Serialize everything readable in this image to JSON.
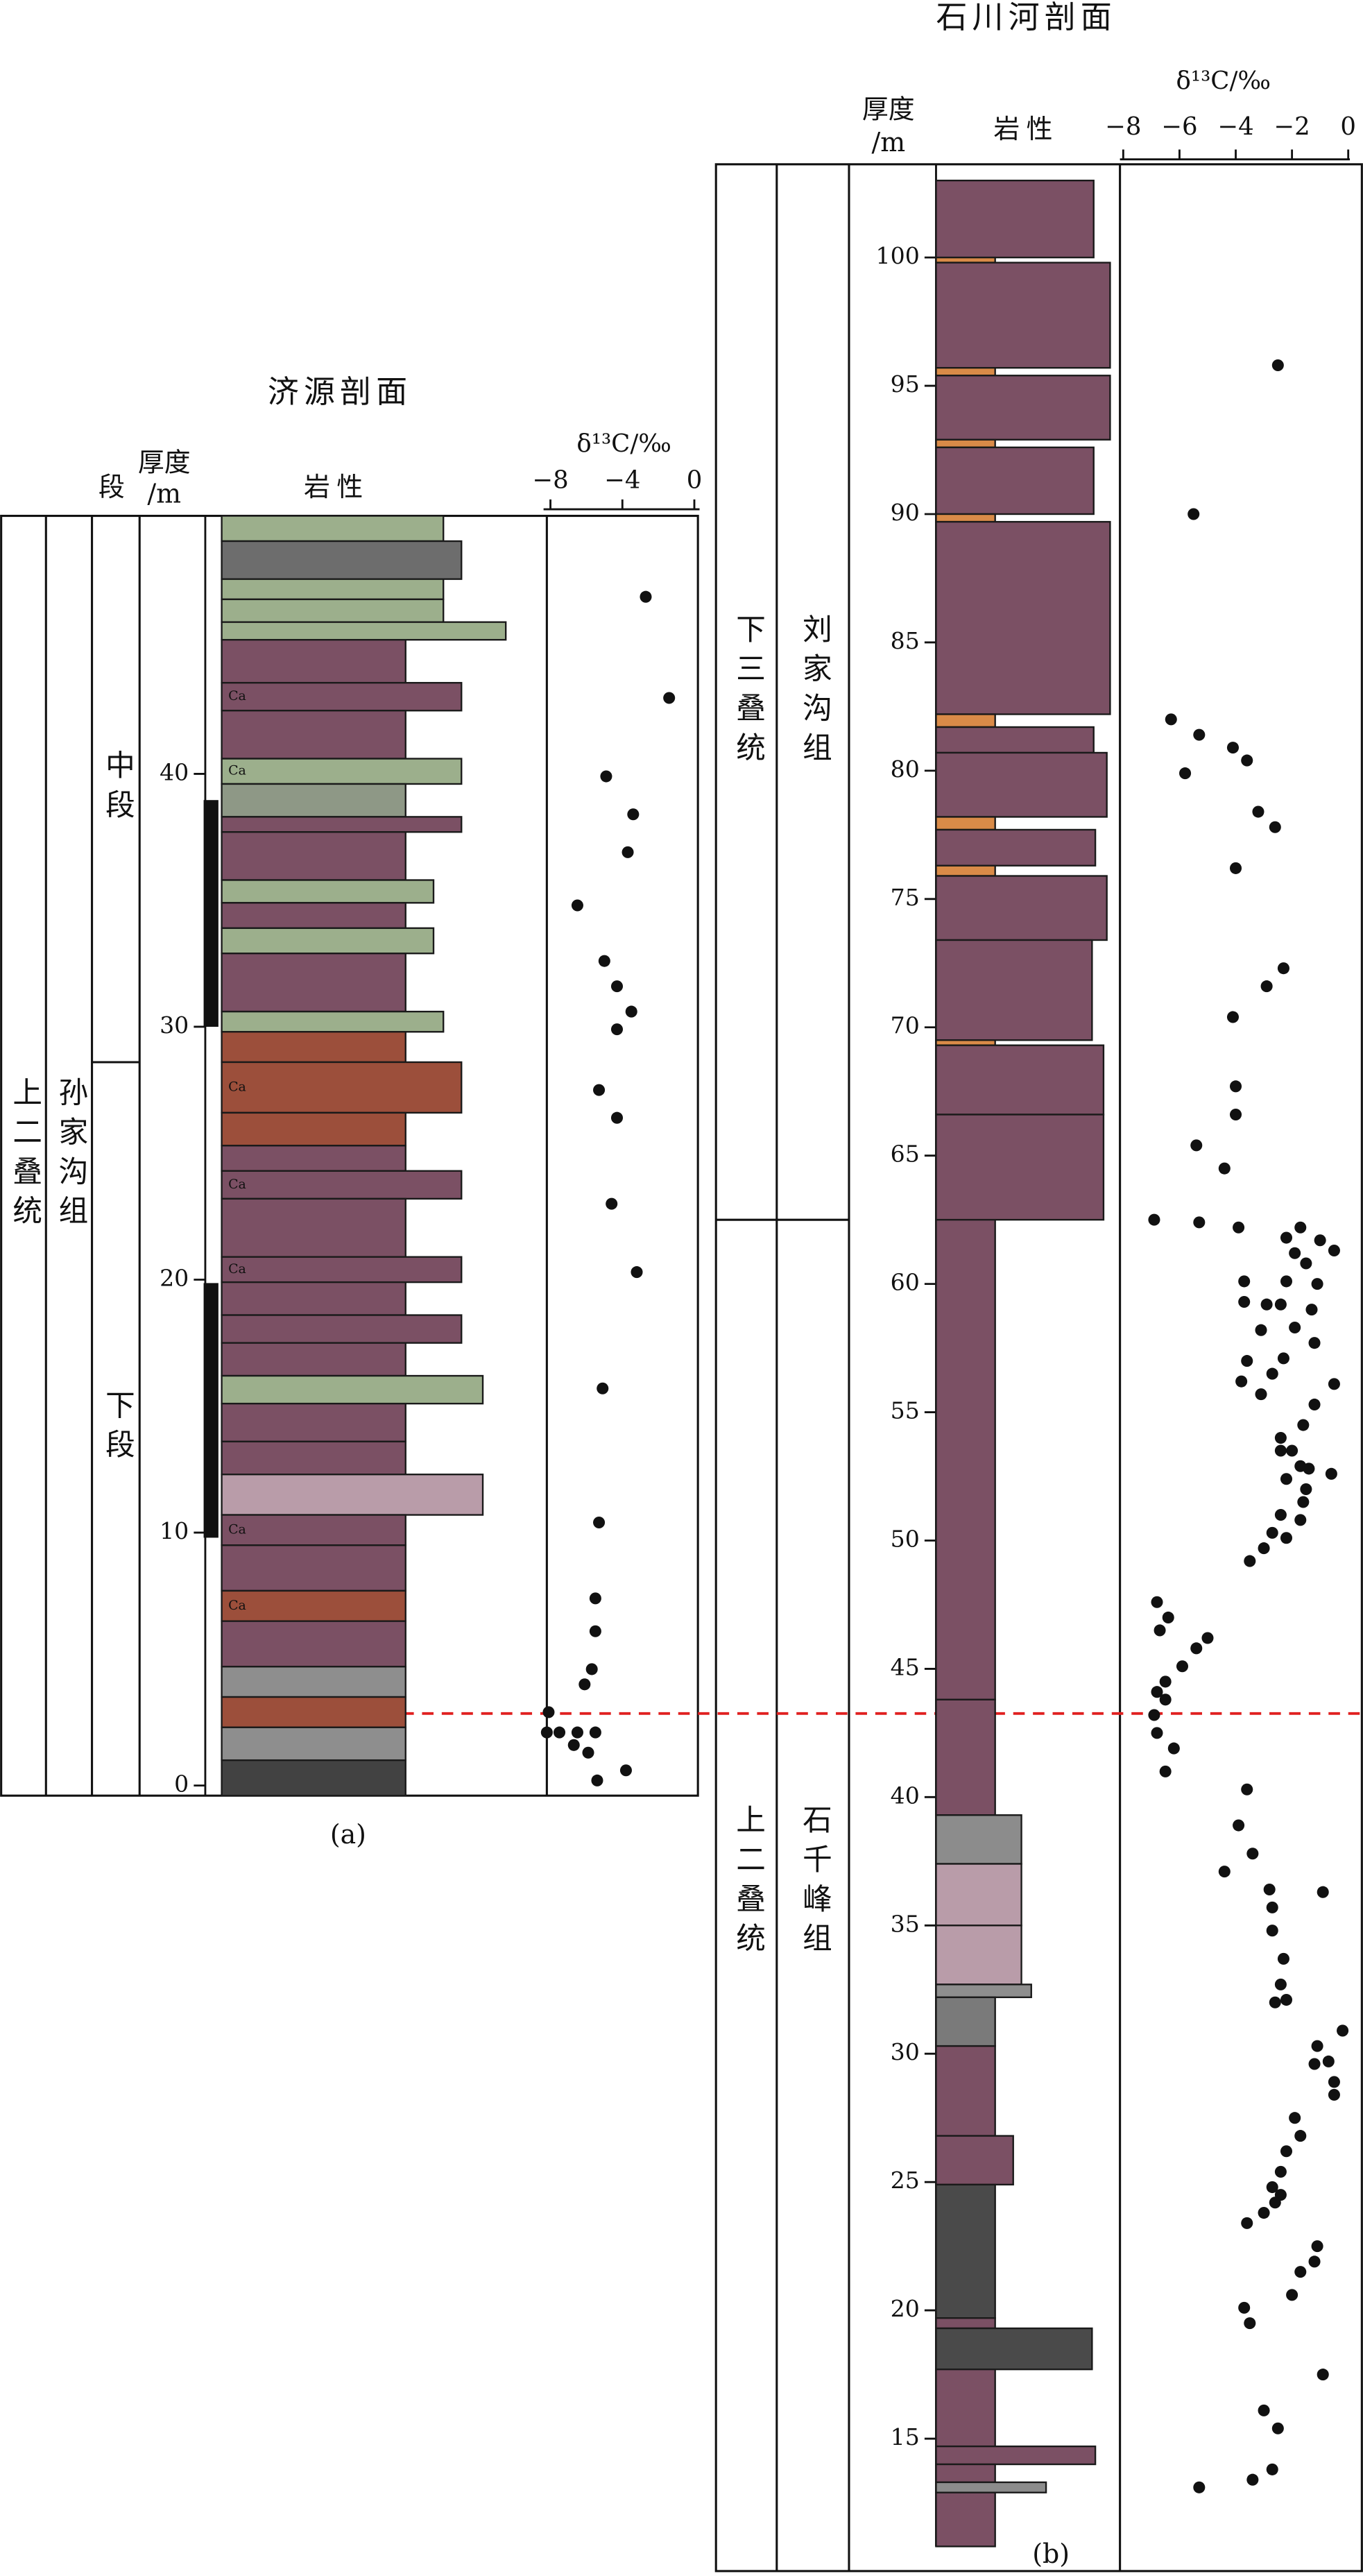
{
  "chart_data": [
    {
      "type": "scatter",
      "title": "济源剖面",
      "caption": "(a)",
      "xlabel": "δ¹³C/‰",
      "ylabel": [
        "厚度",
        "/m"
      ],
      "lithology_label": "岩性",
      "member_header": "段",
      "xlim": [
        -8.2,
        0.2
      ],
      "xticks": [
        {
          "value": -8,
          "label": "−8"
        },
        {
          "value": -4,
          "label": "−4"
        },
        0
      ],
      "ylim": [
        -0.4,
        50.2
      ],
      "yticks": [
        0,
        10,
        20,
        30,
        40
      ],
      "color": "#111111",
      "x": [
        -2.7,
        -1.4,
        -4.9,
        -3.4,
        -3.7,
        -6.5,
        -5.0,
        -4.3,
        -3.5,
        -4.3,
        -5.3,
        -4.3,
        -4.6,
        -3.2,
        -5.1,
        -5.3,
        -5.5,
        -5.5,
        -5.7,
        -6.1,
        -8.1,
        -8.2,
        -7.5,
        -6.5,
        -5.5,
        -6.7,
        -5.9,
        -3.8,
        -5.4
      ],
      "values": [
        47.0,
        43.0,
        39.9,
        38.4,
        36.9,
        34.8,
        32.6,
        31.6,
        30.6,
        29.9,
        27.5,
        26.4,
        23.0,
        20.3,
        15.7,
        10.4,
        7.4,
        6.1,
        4.6,
        4.0,
        2.9,
        2.1,
        2.1,
        2.1,
        2.1,
        1.6,
        1.3,
        0.6,
        0.2
      ],
      "systems": [
        {
          "label": "上二叠统",
          "top": 50.2,
          "bottom": -0.4
        }
      ],
      "formations": [
        {
          "label": "孙家沟组",
          "top": 50.2,
          "bottom": -0.4
        }
      ],
      "members": [
        {
          "label": "中段",
          "top": 50.2,
          "bottom": 28.6
        },
        {
          "label": "下段",
          "top": 28.6,
          "bottom": -0.4
        }
      ],
      "lithology": [
        {
          "top": 50.2,
          "bottom": 49.2,
          "color": "#9caf8c"
        },
        {
          "top": 49.2,
          "bottom": 47.7,
          "color": "#6d6d6d"
        },
        {
          "top": 47.7,
          "bottom": 46.9,
          "color": "#9caf8c"
        },
        {
          "top": 46.9,
          "bottom": 46.0,
          "color": "#9caf8c"
        },
        {
          "top": 46.0,
          "bottom": 45.3,
          "color": "#9caf8c"
        },
        {
          "top": 45.3,
          "bottom": 43.6,
          "color": "#7b5064"
        },
        {
          "top": 43.6,
          "bottom": 42.5,
          "color": "#7b5064",
          "label": "Ca"
        },
        {
          "top": 42.5,
          "bottom": 40.6,
          "color": "#7b5064"
        },
        {
          "top": 40.6,
          "bottom": 39.6,
          "color": "#9caf8c",
          "label": "Ca"
        },
        {
          "top": 39.6,
          "bottom": 38.3,
          "color": "#8e9886"
        },
        {
          "top": 38.3,
          "bottom": 37.7,
          "color": "#7b5064"
        },
        {
          "top": 37.7,
          "bottom": 35.8,
          "color": "#7b5064"
        },
        {
          "top": 35.8,
          "bottom": 34.9,
          "color": "#9caf8c"
        },
        {
          "top": 34.9,
          "bottom": 33.9,
          "color": "#7b5064"
        },
        {
          "top": 33.9,
          "bottom": 32.9,
          "color": "#9caf8c"
        },
        {
          "top": 32.9,
          "bottom": 30.6,
          "color": "#7b5064"
        },
        {
          "top": 30.6,
          "bottom": 29.8,
          "color": "#9caf8c"
        },
        {
          "top": 29.8,
          "bottom": 28.6,
          "color": "#9c4f3b"
        },
        {
          "top": 28.6,
          "bottom": 26.6,
          "color": "#9c4f3b",
          "label": "Ca"
        },
        {
          "top": 26.6,
          "bottom": 25.3,
          "color": "#9c4f3b"
        },
        {
          "top": 25.3,
          "bottom": 24.3,
          "color": "#7b5064"
        },
        {
          "top": 24.3,
          "bottom": 23.2,
          "color": "#7b5064",
          "label": "Ca"
        },
        {
          "top": 23.2,
          "bottom": 20.9,
          "color": "#7b5064"
        },
        {
          "top": 20.9,
          "bottom": 19.9,
          "color": "#7b5064",
          "label": "Ca"
        },
        {
          "top": 19.9,
          "bottom": 18.6,
          "color": "#7b5064"
        },
        {
          "top": 18.6,
          "bottom": 17.5,
          "color": "#7b5064"
        },
        {
          "top": 17.5,
          "bottom": 16.2,
          "color": "#7b5064"
        },
        {
          "top": 16.2,
          "bottom": 15.1,
          "color": "#9caf8c"
        },
        {
          "top": 15.1,
          "bottom": 13.6,
          "color": "#7b5064"
        },
        {
          "top": 13.6,
          "bottom": 12.3,
          "color": "#7b5064"
        },
        {
          "top": 12.3,
          "bottom": 10.7,
          "color": "#b99ca9"
        },
        {
          "top": 10.7,
          "bottom": 9.5,
          "color": "#7b5064",
          "label": "Ca"
        },
        {
          "top": 9.5,
          "bottom": 7.7,
          "color": "#7b5064"
        },
        {
          "top": 7.7,
          "bottom": 6.5,
          "color": "#9c4f3b",
          "label": "Ca"
        },
        {
          "top": 6.5,
          "bottom": 4.7,
          "color": "#7b5064"
        },
        {
          "top": 4.7,
          "bottom": 3.5,
          "color": "#8e8e8e"
        },
        {
          "top": 3.5,
          "bottom": 2.3,
          "color": "#9c4f3b"
        },
        {
          "top": 2.3,
          "bottom": 1.0,
          "color": "#8e8e8e"
        },
        {
          "top": 1.0,
          "bottom": -0.4,
          "color": "#424242"
        }
      ]
    },
    {
      "type": "scatter",
      "title": "石川河剖面",
      "caption": "(b)",
      "xlabel": "δ¹³C/‰",
      "ylabel": [
        "厚度",
        "/m"
      ],
      "lithology_label": "岩性",
      "xlim": [
        -8,
        0
      ],
      "xticks": [
        {
          "value": -8,
          "label": "−8"
        },
        {
          "value": -6,
          "label": "−6"
        },
        {
          "value": -4,
          "label": "−4"
        },
        {
          "value": -2,
          "label": "−2"
        },
        0
      ],
      "ylim": [
        10.8,
        103.6
      ],
      "yticks": [
        15,
        20,
        25,
        30,
        35,
        40,
        45,
        50,
        55,
        60,
        65,
        70,
        75,
        80,
        85,
        90,
        95,
        100
      ],
      "color": "#111111",
      "x": [
        -2.5,
        -5.5,
        -6.3,
        -5.3,
        -4.1,
        -5.8,
        -3.6,
        -3.2,
        -2.6,
        -4.0,
        -2.3,
        -2.9,
        -4.1,
        -4.0,
        -4.0,
        -5.4,
        -4.4,
        -6.9,
        -5.3,
        -3.9,
        -1.7,
        -2.2,
        -1.0,
        -0.5,
        -1.9,
        -1.5,
        -2.2,
        -3.7,
        -1.1,
        -3.7,
        -2.9,
        -2.4,
        -1.3,
        -1.9,
        -3.1,
        -3.6,
        -2.3,
        -1.2,
        -3.8,
        -2.7,
        -0.5,
        -3.1,
        -1.2,
        -1.6,
        -2.4,
        -2.4,
        -0.6,
        -2.0,
        -1.7,
        -1.4,
        -2.2,
        -1.5,
        -1.6,
        -2.4,
        -1.7,
        -2.7,
        -2.2,
        -3.0,
        -3.5,
        -6.8,
        -6.4,
        -6.7,
        -5.0,
        -5.4,
        -5.9,
        -6.5,
        -6.8,
        -6.5,
        -6.9,
        -6.8,
        -6.2,
        -6.5,
        -3.6,
        -3.9,
        -3.4,
        -4.4,
        -2.8,
        -0.9,
        -2.7,
        -2.7,
        -2.3,
        -2.4,
        -2.2,
        -2.6,
        -0.2,
        -1.1,
        -0.7,
        -1.2,
        -0.5,
        -0.5,
        -1.9,
        -1.7,
        -2.2,
        -2.4,
        -2.7,
        -2.4,
        -2.6,
        -3.0,
        -3.6,
        -1.1,
        -1.2,
        -1.7,
        -2.0,
        -3.7,
        -3.5,
        -0.9,
        -3.0,
        -2.5,
        -2.7,
        -3.4,
        -5.3
      ],
      "values": [
        95.8,
        90.0,
        82.0,
        81.4,
        80.9,
        79.9,
        80.4,
        78.4,
        77.8,
        76.2,
        72.3,
        71.6,
        70.4,
        67.7,
        66.6,
        65.4,
        64.5,
        62.5,
        62.4,
        62.2,
        62.2,
        61.8,
        61.7,
        61.3,
        61.2,
        60.8,
        60.1,
        60.1,
        60.0,
        59.3,
        59.2,
        59.2,
        59.0,
        58.3,
        58.2,
        57.0,
        57.1,
        57.7,
        56.2,
        56.5,
        56.1,
        55.7,
        55.3,
        54.5,
        54.0,
        53.5,
        52.6,
        53.5,
        52.9,
        52.8,
        52.4,
        52.0,
        51.5,
        51.0,
        50.8,
        50.3,
        50.1,
        49.7,
        49.2,
        47.6,
        47.0,
        46.5,
        46.2,
        45.8,
        45.1,
        44.5,
        44.1,
        43.8,
        43.2,
        42.5,
        41.9,
        41.0,
        40.3,
        38.9,
        37.8,
        37.1,
        36.4,
        36.3,
        35.7,
        34.8,
        33.7,
        32.7,
        32.1,
        32.0,
        30.9,
        30.3,
        29.7,
        29.6,
        28.9,
        28.4,
        27.5,
        26.8,
        26.2,
        25.4,
        24.8,
        24.5,
        24.2,
        23.8,
        23.4,
        22.5,
        21.9,
        21.5,
        20.6,
        20.1,
        19.5,
        17.5,
        16.1,
        15.4,
        13.8,
        13.4,
        13.1
      ],
      "systems": [
        {
          "label": "下三叠统",
          "top": 103.6,
          "bottom": 62.5
        },
        {
          "label": "上二叠统",
          "top": 62.5,
          "bottom": 10.8
        }
      ],
      "formations": [
        {
          "label": "刘家沟组",
          "top": 103.6,
          "bottom": 62.5
        },
        {
          "label": "石千峰组",
          "top": 62.5,
          "bottom": 10.8
        }
      ],
      "lithology": [
        {
          "top": 103.0,
          "bottom": 100.0,
          "color": "#7b5064"
        },
        {
          "top": 100.0,
          "bottom": 99.8,
          "color": "#d98b48"
        },
        {
          "top": 99.8,
          "bottom": 95.7,
          "color": "#7b5064"
        },
        {
          "top": 95.7,
          "bottom": 95.4,
          "color": "#d98b48"
        },
        {
          "top": 95.4,
          "bottom": 92.9,
          "color": "#7b5064"
        },
        {
          "top": 92.9,
          "bottom": 92.6,
          "color": "#d98b48"
        },
        {
          "top": 92.6,
          "bottom": 90.0,
          "color": "#7b5064"
        },
        {
          "top": 90.0,
          "bottom": 89.7,
          "color": "#d98b48"
        },
        {
          "top": 89.7,
          "bottom": 82.2,
          "color": "#7b5064"
        },
        {
          "top": 82.2,
          "bottom": 81.7,
          "color": "#d98b48"
        },
        {
          "top": 81.7,
          "bottom": 80.7,
          "color": "#7b5064"
        },
        {
          "top": 80.7,
          "bottom": 78.2,
          "color": "#7b5064"
        },
        {
          "top": 78.2,
          "bottom": 77.7,
          "color": "#d98b48"
        },
        {
          "top": 77.7,
          "bottom": 76.3,
          "color": "#7b5064"
        },
        {
          "top": 76.3,
          "bottom": 75.9,
          "color": "#d98b48"
        },
        {
          "top": 75.9,
          "bottom": 73.4,
          "color": "#7b5064"
        },
        {
          "top": 73.4,
          "bottom": 69.5,
          "color": "#7b5064"
        },
        {
          "top": 69.5,
          "bottom": 69.3,
          "color": "#d98b48"
        },
        {
          "top": 69.3,
          "bottom": 66.6,
          "color": "#7b5064"
        },
        {
          "top": 66.6,
          "bottom": 62.5,
          "color": "#7b5064"
        },
        {
          "top": 62.5,
          "bottom": 43.8,
          "color": "#7b5064"
        },
        {
          "top": 43.8,
          "bottom": 39.3,
          "color": "#7b5064"
        },
        {
          "top": 39.3,
          "bottom": 37.4,
          "color": "#8c8c8c"
        },
        {
          "top": 37.4,
          "bottom": 35.0,
          "color": "#b99ca9"
        },
        {
          "top": 35.0,
          "bottom": 32.7,
          "color": "#b99ca9"
        },
        {
          "top": 32.7,
          "bottom": 32.2,
          "color": "#8e8e8e"
        },
        {
          "top": 32.2,
          "bottom": 30.3,
          "color": "#7a7a7a"
        },
        {
          "top": 30.3,
          "bottom": 26.8,
          "color": "#7b5064"
        },
        {
          "top": 26.8,
          "bottom": 24.9,
          "color": "#7b5064"
        },
        {
          "top": 24.9,
          "bottom": 19.7,
          "color": "#4a4a4a"
        },
        {
          "top": 19.7,
          "bottom": 19.3,
          "color": "#7b5064"
        },
        {
          "top": 19.3,
          "bottom": 17.7,
          "color": "#4a4a4a"
        },
        {
          "top": 17.7,
          "bottom": 14.7,
          "color": "#7b5064"
        },
        {
          "top": 14.7,
          "bottom": 14.0,
          "color": "#7b5064"
        },
        {
          "top": 14.0,
          "bottom": 13.3,
          "color": "#7b5064"
        },
        {
          "top": 13.3,
          "bottom": 12.9,
          "color": "#8c8c8c"
        },
        {
          "top": 12.9,
          "bottom": 10.8,
          "color": "#7b5064"
        }
      ]
    }
  ]
}
